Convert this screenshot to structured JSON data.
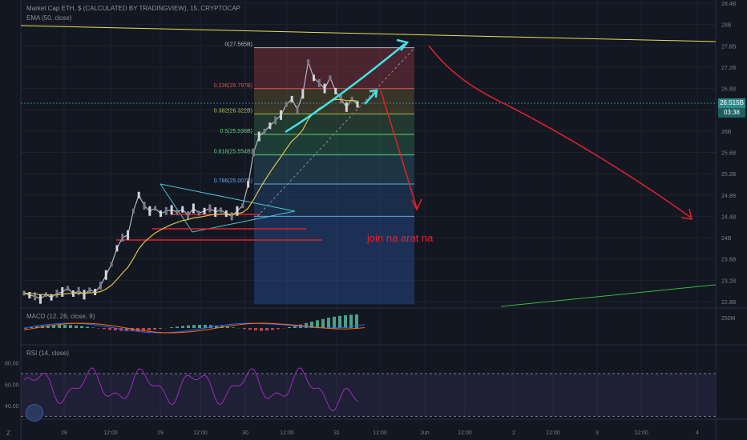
{
  "header": {
    "symbol_line": "Market Cap ETH, $ (CALCULATED BY TRADINGVIEW), 15, CRYPTOCAP",
    "ema_line": "EMA (50, close)"
  },
  "macd_label": "MACD (12, 26, close, 9)",
  "rsi_label": "RSI (14, close)",
  "annotation": "join na arat na",
  "current_price": {
    "value": "26.515B",
    "countdown": "03:38"
  },
  "corner_z": "Z",
  "colors": {
    "background": "#131722",
    "grid": "#1e222d",
    "candle": "#b2b5be",
    "ema": "#d8c34a",
    "cyan": "#44e1e8",
    "red_line": "#e2212b",
    "green_line": "#3bb842",
    "price_tag": "#2e8b8b",
    "rsi": "#9a2fb8"
  },
  "chart_data": {
    "type": "line",
    "title": "Market Cap ETH, $ (CALCULATED BY TRADINGVIEW), 15, CRYPTOCAP",
    "price_axis": {
      "ticks": [
        "28.4B",
        "28B",
        "27.6B",
        "27.2B",
        "26.8B",
        "26.4B",
        "26B",
        "25.6B",
        "25.2B",
        "24.8B",
        "24.4B",
        "24B",
        "23.6B",
        "23.2B",
        "22.8B"
      ],
      "range": [
        22.7,
        28.5
      ]
    },
    "time_axis": {
      "ticks": [
        "28",
        "12:00",
        "29",
        "12:00",
        "30",
        "12:00",
        "31",
        "12:00",
        "Jun",
        "12:00",
        "2",
        "12:00",
        "3",
        "12:00",
        "4"
      ]
    },
    "fibonacci": [
      {
        "label": "0(27.565B)",
        "value": 27.565
      },
      {
        "label": "0.236(26.797B)",
        "value": 26.797
      },
      {
        "label": "0.382(26.322B)",
        "value": 26.322
      },
      {
        "label": "0.5(25.938B)",
        "value": 25.938
      },
      {
        "label": "0.618(25.554B)",
        "value": 25.554
      },
      {
        "label": "0.786(25.007B)",
        "value": 25.007
      }
    ],
    "macd_axis": {
      "ticks": [
        "250M"
      ]
    },
    "rsi_axis": {
      "ticks": [
        "80.00",
        "60.00",
        "40.00"
      ],
      "upper": 70,
      "lower": 30
    },
    "price_series": [
      22.96,
      22.92,
      22.9,
      22.85,
      22.93,
      22.88,
      22.95,
      22.98,
      23.05,
      22.95,
      23.0,
      22.93,
      23.02,
      22.98,
      23.1,
      23.3,
      23.5,
      23.8,
      24.0,
      24.05,
      24.5,
      24.8,
      24.6,
      24.5,
      24.55,
      24.45,
      24.5,
      24.52,
      24.48,
      24.53,
      24.42,
      24.55,
      24.46,
      24.5,
      24.55,
      24.48,
      24.52,
      24.45,
      24.4,
      24.5,
      24.6,
      25.0,
      25.6,
      25.9,
      26.0,
      26.1,
      26.2,
      26.3,
      26.5,
      26.6,
      26.4,
      26.7,
      27.3,
      27.0,
      26.9,
      26.8,
      27.0,
      26.75,
      26.6,
      26.45,
      26.6,
      26.5
    ]
  }
}
